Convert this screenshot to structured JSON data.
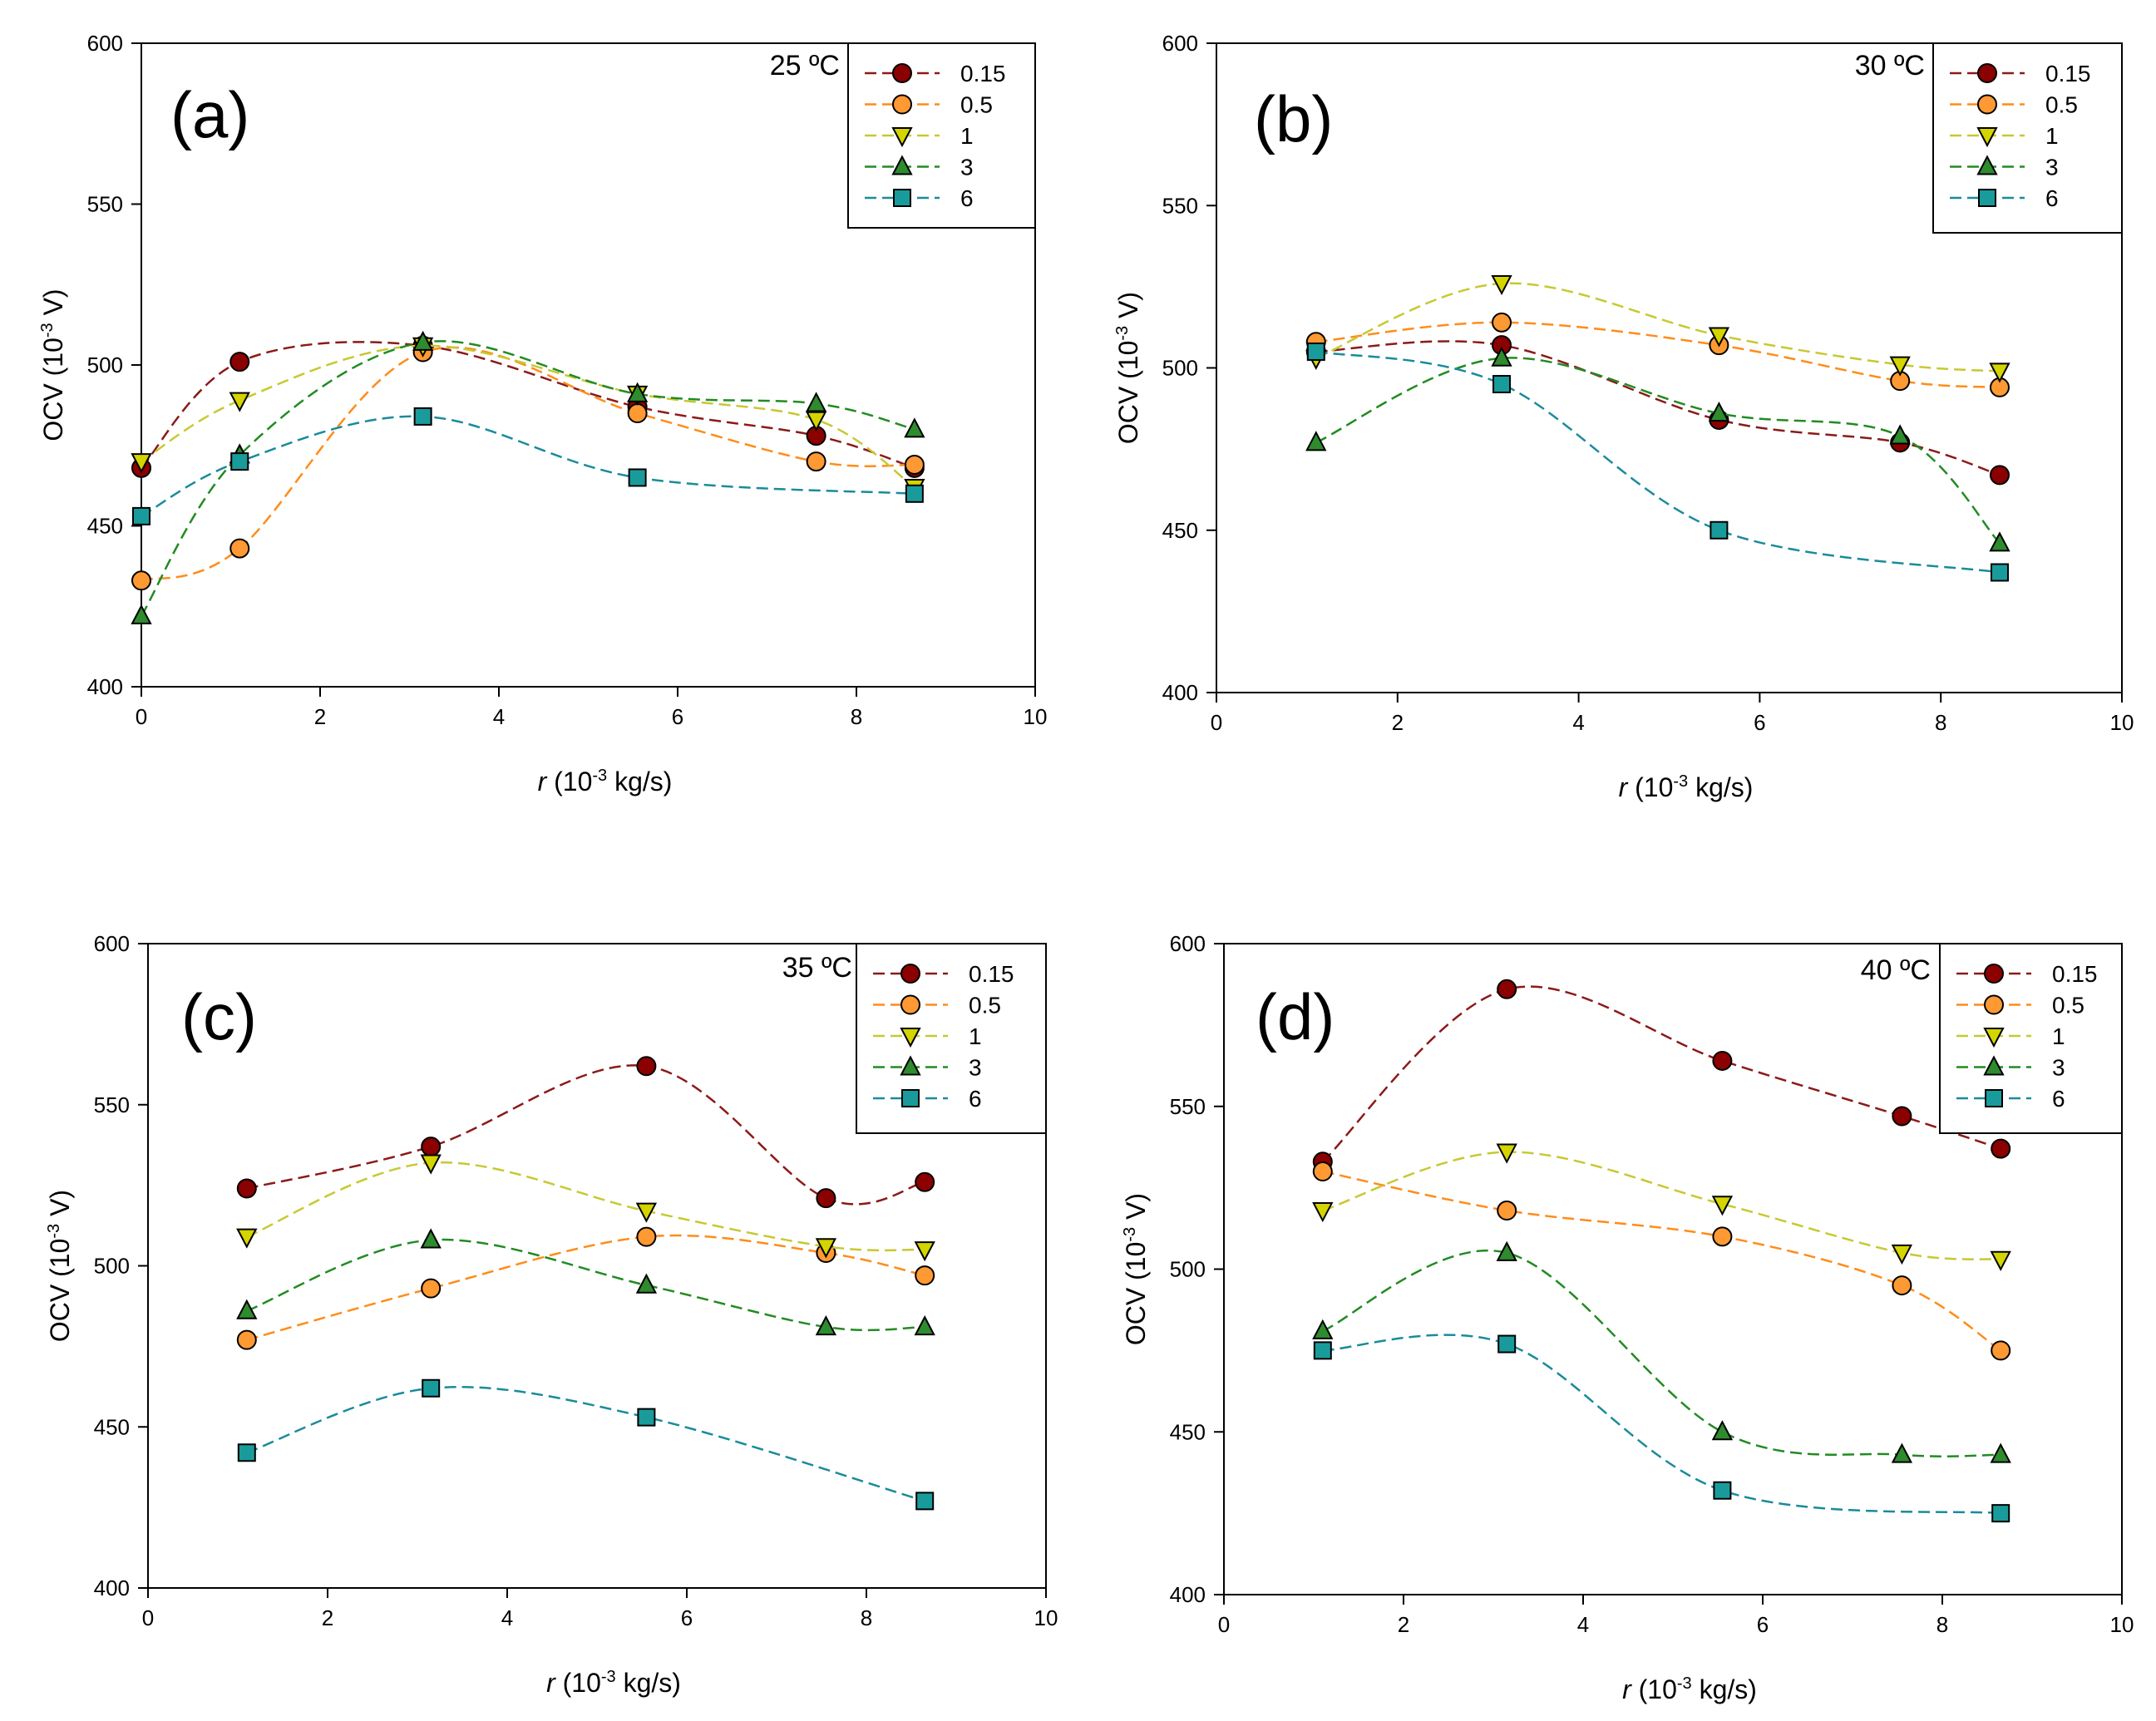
{
  "chart_data": [
    {
      "type": "line",
      "panel_label": "(a)",
      "temperature_label": "25 ºC",
      "xlabel_var": "r",
      "xlabel_open": " (10",
      "xlabel_exp": "-3",
      "xlabel_close": " kg/s)",
      "ylabel_main": "OCV (10",
      "ylabel_exp": "-3",
      "ylabel_close": " V)",
      "xlim": [
        0,
        10
      ],
      "ylim": [
        400,
        600
      ],
      "xticks": [
        "0",
        "2",
        "4",
        "6",
        "8",
        "10"
      ],
      "yticks": [
        "400",
        "450",
        "500",
        "550",
        "600"
      ],
      "legend_position": "top-right",
      "series": [
        {
          "name": "0.15",
          "x": [
            0,
            1.1,
            3.15,
            5.55,
            7.55,
            8.65
          ],
          "values": [
            468,
            501,
            506,
            487,
            478,
            468
          ]
        },
        {
          "name": "0.5",
          "x": [
            0,
            1.1,
            3.15,
            5.55,
            7.55,
            8.65
          ],
          "values": [
            433,
            443,
            504,
            485,
            470,
            469
          ]
        },
        {
          "name": "1",
          "x": [
            0,
            1.1,
            3.15,
            5.55,
            7.55,
            8.65
          ],
          "values": [
            470,
            489,
            506,
            491,
            483,
            462
          ]
        },
        {
          "name": "3",
          "x": [
            0,
            1.1,
            3.15,
            5.55,
            7.55,
            8.65
          ],
          "values": [
            422,
            472,
            507,
            491,
            488,
            480
          ]
        },
        {
          "name": "6",
          "x": [
            0,
            1.1,
            3.15,
            5.55,
            8.65
          ],
          "values": [
            453,
            470,
            484,
            465,
            460
          ]
        }
      ]
    },
    {
      "type": "line",
      "panel_label": "(b)",
      "temperature_label": "30 ºC",
      "xlabel_var": "r",
      "xlabel_open": " (10",
      "xlabel_exp": "-3",
      "xlabel_close": " kg/s)",
      "ylabel_main": "OCV (10",
      "ylabel_exp": "-3",
      "ylabel_close": " V)",
      "xlim": [
        0,
        10
      ],
      "ylim": [
        400,
        600
      ],
      "xticks": [
        "0",
        "2",
        "4",
        "6",
        "8",
        "10"
      ],
      "yticks": [
        "400",
        "450",
        "500",
        "550",
        "600"
      ],
      "legend_position": "top-right",
      "series": [
        {
          "name": "0.15",
          "x": [
            1.1,
            3.15,
            5.55,
            7.55,
            8.65
          ],
          "values": [
            505,
            507,
            484,
            477,
            467
          ]
        },
        {
          "name": "0.5",
          "x": [
            1.1,
            3.15,
            5.55,
            7.55,
            8.65
          ],
          "values": [
            508,
            514,
            507,
            496,
            494
          ]
        },
        {
          "name": "1",
          "x": [
            1.1,
            3.15,
            5.55,
            7.55,
            8.65
          ],
          "values": [
            503,
            526,
            510,
            501,
            499
          ]
        },
        {
          "name": "3",
          "x": [
            1.1,
            3.15,
            5.55,
            7.55,
            8.65
          ],
          "values": [
            477,
            503,
            486,
            479,
            446
          ]
        },
        {
          "name": "6",
          "x": [
            1.1,
            3.15,
            5.55,
            8.65
          ],
          "values": [
            505,
            495,
            450,
            437
          ]
        }
      ]
    },
    {
      "type": "line",
      "panel_label": "(c)",
      "temperature_label": "35 ºC",
      "xlabel_var": "r",
      "xlabel_open": " (10",
      "xlabel_exp": "-3",
      "xlabel_close": " kg/s)",
      "ylabel_main": "OCV (10",
      "ylabel_exp": "-3",
      "ylabel_close": " V)",
      "xlim": [
        0,
        10
      ],
      "ylim": [
        400,
        600
      ],
      "xticks": [
        "0",
        "2",
        "4",
        "6",
        "8",
        "10"
      ],
      "yticks": [
        "400",
        "450",
        "500",
        "550",
        "600"
      ],
      "legend_position": "top-right",
      "series": [
        {
          "name": "0.15",
          "x": [
            1.1,
            3.15,
            5.55,
            7.55,
            8.65
          ],
          "values": [
            524,
            537,
            562,
            521,
            526
          ]
        },
        {
          "name": "0.5",
          "x": [
            1.1,
            3.15,
            5.55,
            7.55,
            8.65
          ],
          "values": [
            477,
            493,
            509,
            504,
            497
          ]
        },
        {
          "name": "1",
          "x": [
            1.1,
            3.15,
            5.55,
            7.55,
            8.65
          ],
          "values": [
            509,
            532,
            517,
            506,
            505
          ]
        },
        {
          "name": "3",
          "x": [
            1.1,
            3.15,
            5.55,
            7.55,
            8.65
          ],
          "values": [
            486,
            508,
            494,
            481,
            481
          ]
        },
        {
          "name": "6",
          "x": [
            1.1,
            3.15,
            5.55,
            8.65
          ],
          "values": [
            442,
            462,
            453,
            427
          ]
        }
      ]
    },
    {
      "type": "line",
      "panel_label": "(d)",
      "temperature_label": "40 ºC",
      "xlabel_var": "r",
      "xlabel_open": " (10",
      "xlabel_exp": "-3",
      "xlabel_close": " kg/s)",
      "ylabel_main": "OCV (10",
      "ylabel_exp": "-3",
      "ylabel_close": " V)",
      "xlim": [
        0,
        10
      ],
      "ylim": [
        400,
        600
      ],
      "xticks": [
        "0",
        "2",
        "4",
        "6",
        "8",
        "10"
      ],
      "yticks": [
        "400",
        "450",
        "500",
        "550",
        "600"
      ],
      "legend_position": "top-right",
      "series": [
        {
          "name": "0.15",
          "x": [
            1.1,
            3.15,
            5.55,
            7.55,
            8.65
          ],
          "values": [
            533,
            586,
            564,
            547,
            537
          ]
        },
        {
          "name": "0.5",
          "x": [
            1.1,
            3.15,
            5.55,
            7.55,
            8.65
          ],
          "values": [
            530,
            518,
            510,
            495,
            475
          ]
        },
        {
          "name": "1",
          "x": [
            1.1,
            3.15,
            5.55,
            7.55,
            8.65
          ],
          "values": [
            518,
            536,
            520,
            505,
            503
          ]
        },
        {
          "name": "3",
          "x": [
            1.1,
            3.15,
            5.55,
            7.55,
            8.65
          ],
          "values": [
            481,
            505,
            450,
            443,
            443
          ]
        },
        {
          "name": "6",
          "x": [
            1.1,
            3.15,
            5.55,
            8.65
          ],
          "values": [
            475,
            477,
            432,
            425
          ]
        }
      ]
    }
  ],
  "style": {
    "series_colors": {
      "0.15": {
        "line": "#8b1a1a",
        "fill": "#8b0000",
        "marker": "circle"
      },
      "0.5": {
        "line": "#ff8c1a",
        "fill": "#ff9933",
        "marker": "circle"
      },
      "1": {
        "line": "#c8c832",
        "fill": "#d4d400",
        "marker": "triangle-down"
      },
      "3": {
        "line": "#228b22",
        "fill": "#2e8b2e",
        "marker": "triangle-up"
      },
      "6": {
        "line": "#1a8b9b",
        "fill": "#1a9b9b",
        "marker": "square"
      }
    },
    "axis_color": "#000000",
    "background": "#ffffff"
  }
}
